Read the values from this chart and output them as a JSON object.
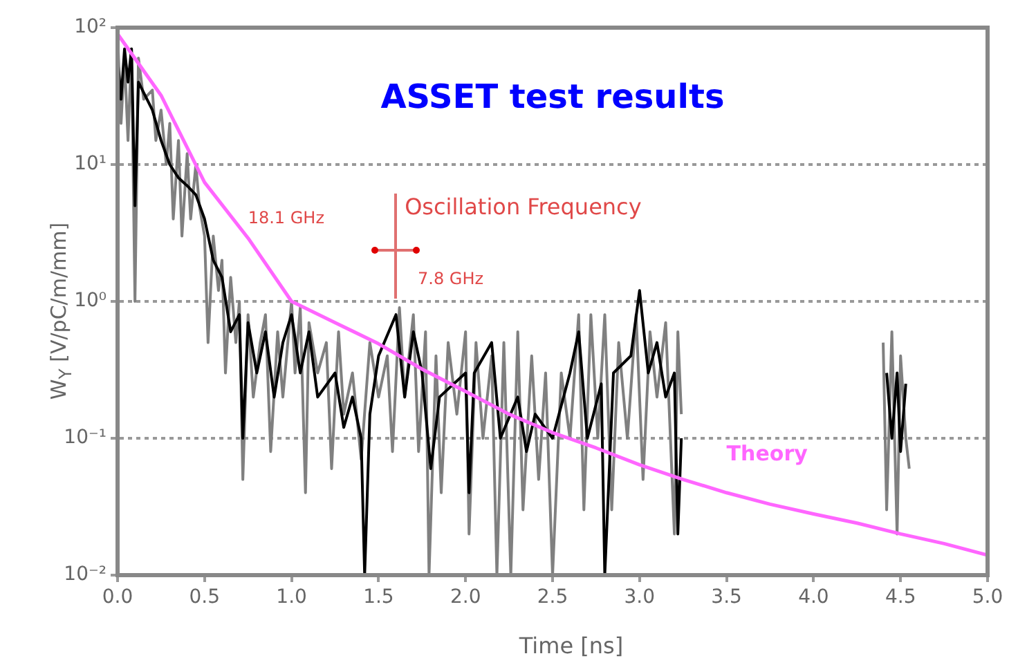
{
  "chart_data": {
    "type": "line",
    "title": "ASSET test results",
    "xlabel": "Time [ns]",
    "ylabel": "W$_{Y}$ [V/pC/m/mm]",
    "annotations": [
      "Oscillation Frequency",
      "18.1 GHz",
      "7.8 GHz"
    ],
    "xlim": [
      0,
      5
    ],
    "xticks": [
      {
        "value": 0,
        "label": "0.0"
      },
      0.5,
      {
        "value": 1,
        "label": "1.0"
      },
      1.5,
      {
        "value": 2,
        "label": "2.0"
      },
      2.5,
      {
        "value": 3,
        "label": "3.0"
      },
      3.5,
      {
        "value": 4,
        "label": "4.0"
      },
      4.5,
      {
        "value": 5,
        "label": "5.0"
      }
    ],
    "ylim": [
      0.01,
      100
    ],
    "yticks": [
      {
        "value": 0.01,
        "label": "10⁻²"
      },
      {
        "value": 0.1,
        "label": "10⁻¹"
      },
      {
        "value": 1,
        "label": "10⁰"
      },
      {
        "value": 10,
        "label": "10¹"
      },
      {
        "value": 100,
        "label": "10²"
      }
    ],
    "log": "y",
    "grid": "y",
    "legend": false,
    "marker": "none",
    "line_style": "solid",
    "series": [
      {
        "color": "#808080",
        "x": [
          0,
          0.02,
          0.04,
          0.06,
          0.08,
          0.1,
          0.12,
          0.15,
          0.2,
          0.22,
          0.25,
          0.28,
          0.3,
          0.32,
          0.35,
          0.37,
          0.4,
          0.42,
          0.45,
          0.47,
          0.5,
          0.52,
          0.55,
          0.58,
          0.6,
          0.62,
          0.65,
          0.68,
          0.7,
          0.72,
          0.75,
          0.78,
          0.82,
          0.85,
          0.88,
          0.92,
          0.95,
          1.0,
          1.02,
          1.05,
          1.08,
          1.1,
          1.15,
          1.2,
          1.23,
          1.27,
          1.3,
          1.35,
          1.4,
          1.45,
          1.5,
          1.55,
          1.58,
          1.62,
          1.65,
          1.7,
          1.73,
          1.77,
          1.79,
          1.83,
          1.86,
          1.9,
          1.95,
          2.0,
          2.02,
          2.06,
          2.1,
          2.15,
          2.18,
          2.22,
          2.26,
          2.3,
          2.33,
          2.38,
          2.42,
          2.46,
          2.5,
          2.55,
          2.6,
          2.65,
          2.68,
          2.72,
          2.76,
          2.8,
          2.84,
          2.88,
          2.93,
          2.98,
          3.02,
          3.06,
          3.1,
          3.15,
          3.2,
          3.22,
          3.24,
          3.8,
          4.4,
          4.42,
          4.45,
          4.48,
          4.5,
          4.53,
          4.55
        ],
        "values": [
          90,
          20,
          60,
          15,
          70,
          1.0,
          60,
          30,
          35,
          15,
          25,
          10,
          20,
          4,
          15,
          3,
          12,
          4,
          10,
          5,
          3,
          0.5,
          3,
          1.2,
          2,
          0.3,
          1.5,
          0.5,
          1.0,
          0.05,
          0.8,
          0.2,
          0.5,
          0.8,
          0.08,
          0.6,
          0.2,
          1.0,
          0.3,
          0.9,
          0.04,
          0.7,
          0.3,
          0.5,
          0.06,
          0.6,
          0.15,
          0.3,
          0.07,
          0.5,
          0.2,
          0.4,
          0.08,
          0.9,
          0.2,
          0.8,
          0.08,
          0.6,
          0.01,
          0.4,
          0.04,
          0.5,
          0.15,
          0.6,
          0.02,
          0.5,
          0.1,
          0.4,
          0.01,
          0.5,
          0.01,
          0.6,
          0.03,
          0.4,
          0.05,
          0.3,
          0.01,
          0.3,
          0.1,
          0.8,
          0.03,
          0.8,
          0.1,
          0.8,
          0.03,
          0.5,
          0.1,
          0.8,
          0.05,
          0.6,
          0.2,
          0.7,
          0.02,
          0.6,
          0.15,
          null,
          0.5,
          0.03,
          0.6,
          0.02,
          0.4,
          0.1,
          0.06
        ]
      },
      {
        "color": "#000000",
        "x": [
          0,
          0.02,
          0.04,
          0.06,
          0.08,
          0.1,
          0.12,
          0.2,
          0.25,
          0.3,
          0.35,
          0.4,
          0.45,
          0.5,
          0.55,
          0.6,
          0.65,
          0.7,
          0.72,
          0.75,
          0.8,
          0.85,
          0.9,
          0.95,
          1.0,
          1.05,
          1.1,
          1.15,
          1.25,
          1.3,
          1.35,
          1.4,
          1.42,
          1.45,
          1.5,
          1.6,
          1.65,
          1.7,
          1.75,
          1.8,
          1.85,
          2.0,
          2.02,
          2.05,
          2.15,
          2.2,
          2.3,
          2.35,
          2.4,
          2.5,
          2.6,
          2.65,
          2.7,
          2.78,
          2.8,
          2.85,
          2.95,
          3.0,
          3.05,
          3.1,
          3.15,
          3.2,
          3.22,
          3.24,
          3.8,
          4.42,
          4.45,
          4.48,
          4.5,
          4.53
        ],
        "values": [
          60,
          30,
          70,
          40,
          70,
          5,
          40,
          25,
          15,
          10,
          8,
          7,
          6,
          4,
          2,
          1.5,
          0.6,
          0.8,
          0.1,
          0.7,
          0.3,
          0.6,
          0.2,
          0.5,
          0.8,
          0.3,
          0.6,
          0.2,
          0.3,
          0.12,
          0.2,
          0.1,
          0.01,
          0.15,
          0.4,
          0.8,
          0.2,
          0.6,
          0.3,
          0.06,
          0.2,
          0.3,
          0.04,
          0.3,
          0.5,
          0.1,
          0.2,
          0.08,
          0.15,
          0.1,
          0.3,
          0.6,
          0.1,
          0.25,
          0.01,
          0.3,
          0.4,
          1.2,
          0.3,
          0.5,
          0.2,
          0.3,
          0.02,
          0.1,
          null,
          0.3,
          0.1,
          0.3,
          0.08,
          0.25
        ]
      },
      {
        "name": "Theory",
        "color": "#ff66ff",
        "x": [
          0,
          0.25,
          0.5,
          0.75,
          1.0,
          1.25,
          1.5,
          1.75,
          2.0,
          2.25,
          2.5,
          2.75,
          3.0,
          3.25,
          3.5,
          3.75,
          4.0,
          4.25,
          4.5,
          4.75,
          5.0
        ],
        "values": [
          90,
          32,
          7.4,
          2.9,
          1.0,
          0.7,
          0.49,
          0.32,
          0.22,
          0.15,
          0.11,
          0.085,
          0.064,
          0.05,
          0.04,
          0.033,
          0.028,
          0.024,
          0.02,
          0.017,
          0.014
        ]
      }
    ]
  }
}
